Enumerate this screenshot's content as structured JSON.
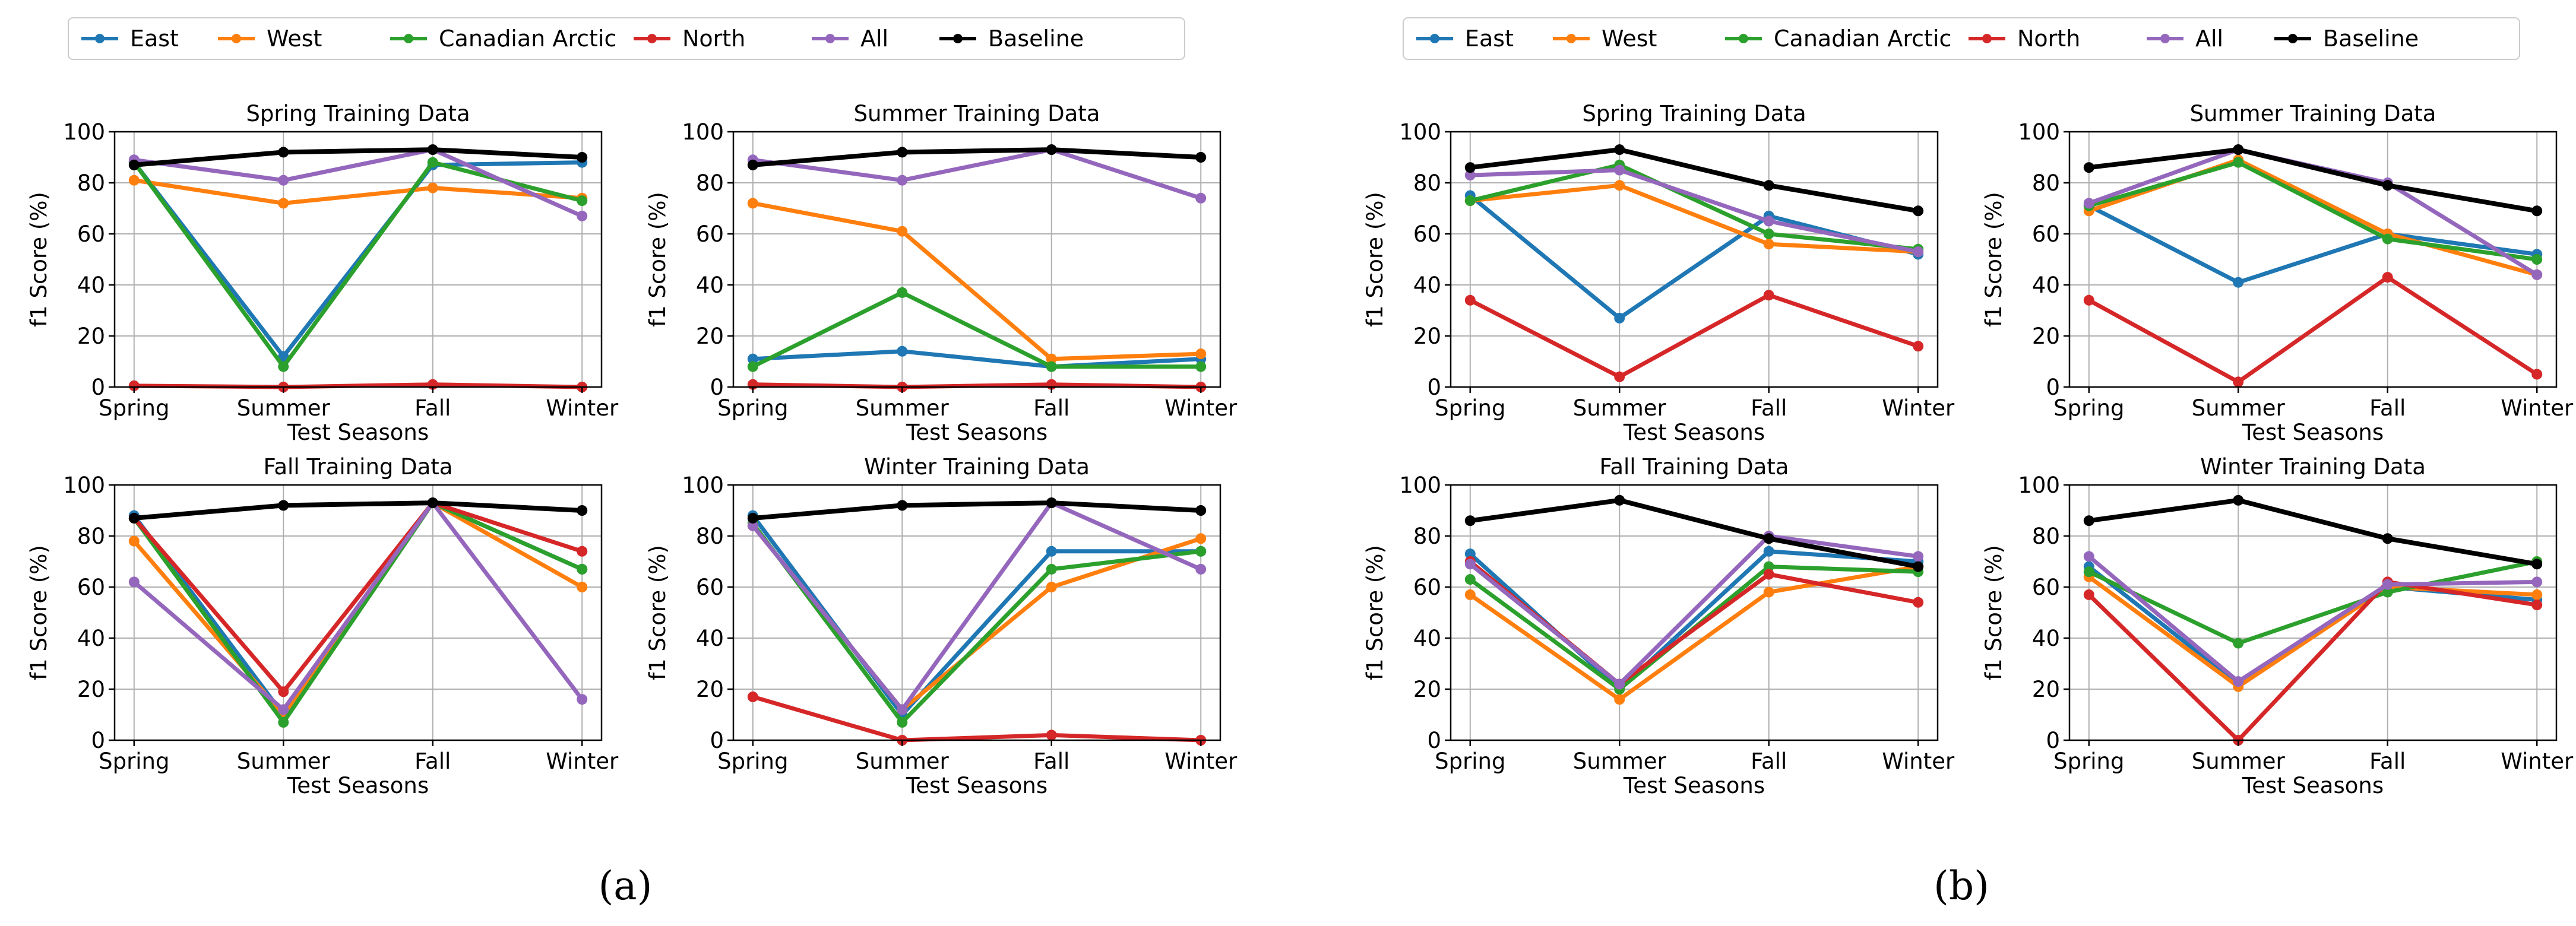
{
  "figure": {
    "panels": [
      {
        "id": "a",
        "caption": "(a)"
      },
      {
        "id": "b",
        "caption": "(b)"
      }
    ],
    "legend": [
      {
        "name": "East",
        "color": "#1f77b4"
      },
      {
        "name": "West",
        "color": "#ff7f0e"
      },
      {
        "name": "Canadian Arctic",
        "color": "#2ca02c"
      },
      {
        "name": "North",
        "color": "#d62728"
      },
      {
        "name": "All",
        "color": "#9467bd"
      },
      {
        "name": "Baseline",
        "color": "#000000"
      }
    ]
  },
  "chart_data": [
    {
      "panel": "a",
      "type": "line",
      "title": "Spring Training Data",
      "xlabel": "Test Seasons",
      "ylabel": "f1 Score (%)",
      "ylim": [
        0,
        100
      ],
      "grid": true,
      "categories": [
        "Spring",
        "Summer",
        "Fall",
        "Winter"
      ],
      "yticks": [
        "0",
        "20",
        "40",
        "60",
        "80",
        "100"
      ],
      "series": [
        {
          "name": "East",
          "values": [
            88,
            12,
            87,
            88
          ]
        },
        {
          "name": "West",
          "values": [
            81,
            72,
            78,
            74
          ]
        },
        {
          "name": "Canadian Arctic",
          "values": [
            88,
            8,
            88,
            73
          ]
        },
        {
          "name": "North",
          "values": [
            0.5,
            0,
            1,
            0
          ]
        },
        {
          "name": "All",
          "values": [
            89,
            81,
            93,
            67
          ]
        },
        {
          "name": "Baseline",
          "values": [
            87,
            92,
            93,
            90
          ]
        }
      ]
    },
    {
      "panel": "a",
      "type": "line",
      "title": "Summer Training Data",
      "xlabel": "Test Seasons",
      "ylabel": "f1 Score (%)",
      "ylim": [
        0,
        100
      ],
      "grid": true,
      "categories": [
        "Spring",
        "Summer",
        "Fall",
        "Winter"
      ],
      "yticks": [
        "0",
        "20",
        "40",
        "60",
        "80",
        "100"
      ],
      "series": [
        {
          "name": "East",
          "values": [
            11,
            14,
            8,
            11
          ]
        },
        {
          "name": "West",
          "values": [
            72,
            61,
            11,
            13
          ]
        },
        {
          "name": "Canadian Arctic",
          "values": [
            8,
            37,
            8,
            8
          ]
        },
        {
          "name": "North",
          "values": [
            1,
            0,
            1,
            0
          ]
        },
        {
          "name": "All",
          "values": [
            89,
            81,
            93,
            74
          ]
        },
        {
          "name": "Baseline",
          "values": [
            87,
            92,
            93,
            90
          ]
        }
      ]
    },
    {
      "panel": "a",
      "type": "line",
      "title": "Fall Training Data",
      "xlabel": "Test Seasons",
      "ylabel": "f1 Score (%)",
      "ylim": [
        0,
        100
      ],
      "grid": true,
      "categories": [
        "Spring",
        "Summer",
        "Fall",
        "Winter"
      ],
      "yticks": [
        "0",
        "20",
        "40",
        "60",
        "80",
        "100"
      ],
      "series": [
        {
          "name": "East",
          "values": [
            88,
            10,
            93,
            67
          ]
        },
        {
          "name": "West",
          "values": [
            78,
            10,
            93,
            60
          ]
        },
        {
          "name": "Canadian Arctic",
          "values": [
            87,
            7,
            93,
            67
          ]
        },
        {
          "name": "North",
          "values": [
            87,
            19,
            93,
            74
          ]
        },
        {
          "name": "All",
          "values": [
            62,
            12,
            93,
            16
          ]
        },
        {
          "name": "Baseline",
          "values": [
            87,
            92,
            93,
            90
          ]
        }
      ]
    },
    {
      "panel": "a",
      "type": "line",
      "title": "Winter Training Data",
      "xlabel": "Test Seasons",
      "ylabel": "f1 Score (%)",
      "ylim": [
        0,
        100
      ],
      "grid": true,
      "categories": [
        "Spring",
        "Summer",
        "Fall",
        "Winter"
      ],
      "yticks": [
        "0",
        "20",
        "40",
        "60",
        "80",
        "100"
      ],
      "series": [
        {
          "name": "East",
          "values": [
            88,
            10,
            74,
            74
          ]
        },
        {
          "name": "West",
          "values": [
            84,
            12,
            60,
            79
          ]
        },
        {
          "name": "Canadian Arctic",
          "values": [
            85,
            7,
            67,
            74
          ]
        },
        {
          "name": "North",
          "values": [
            17,
            0,
            2,
            0
          ]
        },
        {
          "name": "All",
          "values": [
            84,
            12,
            93,
            67
          ]
        },
        {
          "name": "Baseline",
          "values": [
            87,
            92,
            93,
            90
          ]
        }
      ]
    },
    {
      "panel": "b",
      "type": "line",
      "title": "Spring Training Data",
      "xlabel": "Test Seasons",
      "ylabel": "f1 Score (%)",
      "ylim": [
        0,
        100
      ],
      "grid": true,
      "categories": [
        "Spring",
        "Summer",
        "Fall",
        "Winter"
      ],
      "yticks": [
        "0",
        "20",
        "40",
        "60",
        "80",
        "100"
      ],
      "series": [
        {
          "name": "East",
          "values": [
            75,
            27,
            67,
            52
          ]
        },
        {
          "name": "West",
          "values": [
            73,
            79,
            56,
            53
          ]
        },
        {
          "name": "Canadian Arctic",
          "values": [
            73,
            87,
            60,
            54
          ]
        },
        {
          "name": "North",
          "values": [
            34,
            4,
            36,
            16
          ]
        },
        {
          "name": "All",
          "values": [
            83,
            85,
            65,
            53
          ]
        },
        {
          "name": "Baseline",
          "values": [
            86,
            93,
            79,
            69
          ]
        }
      ]
    },
    {
      "panel": "b",
      "type": "line",
      "title": "Summer Training Data",
      "xlabel": "Test Seasons",
      "ylabel": "f1 Score (%)",
      "ylim": [
        0,
        100
      ],
      "grid": true,
      "categories": [
        "Spring",
        "Summer",
        "Fall",
        "Winter"
      ],
      "yticks": [
        "0",
        "20",
        "40",
        "60",
        "80",
        "100"
      ],
      "series": [
        {
          "name": "East",
          "values": [
            71,
            41,
            60,
            52
          ]
        },
        {
          "name": "West",
          "values": [
            69,
            89,
            60,
            44
          ]
        },
        {
          "name": "Canadian Arctic",
          "values": [
            71,
            88,
            58,
            50
          ]
        },
        {
          "name": "North",
          "values": [
            34,
            2,
            43,
            5
          ]
        },
        {
          "name": "All",
          "values": [
            72,
            93,
            80,
            44
          ]
        },
        {
          "name": "Baseline",
          "values": [
            86,
            93,
            79,
            69
          ]
        }
      ]
    },
    {
      "panel": "b",
      "type": "line",
      "title": "Fall Training Data",
      "xlabel": "Test Seasons",
      "ylabel": "f1 Score (%)",
      "ylim": [
        0,
        100
      ],
      "grid": true,
      "categories": [
        "Spring",
        "Summer",
        "Fall",
        "Winter"
      ],
      "yticks": [
        "0",
        "20",
        "40",
        "60",
        "80",
        "100"
      ],
      "series": [
        {
          "name": "East",
          "values": [
            73,
            20,
            74,
            70
          ]
        },
        {
          "name": "West",
          "values": [
            57,
            16,
            58,
            68
          ]
        },
        {
          "name": "Canadian Arctic",
          "values": [
            63,
            20,
            68,
            66
          ]
        },
        {
          "name": "North",
          "values": [
            70,
            22,
            65,
            54
          ]
        },
        {
          "name": "All",
          "values": [
            69,
            22,
            80,
            72
          ]
        },
        {
          "name": "Baseline",
          "values": [
            86,
            94,
            79,
            68
          ]
        }
      ]
    },
    {
      "panel": "b",
      "type": "line",
      "title": "Winter Training Data",
      "xlabel": "Test Seasons",
      "ylabel": "f1 Score (%)",
      "ylim": [
        0,
        100
      ],
      "grid": true,
      "categories": [
        "Spring",
        "Summer",
        "Fall",
        "Winter"
      ],
      "yticks": [
        "0",
        "20",
        "40",
        "60",
        "80",
        "100"
      ],
      "series": [
        {
          "name": "East",
          "values": [
            68,
            22,
            60,
            55
          ]
        },
        {
          "name": "West",
          "values": [
            64,
            21,
            60,
            57
          ]
        },
        {
          "name": "Canadian Arctic",
          "values": [
            66,
            38,
            58,
            70
          ]
        },
        {
          "name": "North",
          "values": [
            57,
            0,
            62,
            53
          ]
        },
        {
          "name": "All",
          "values": [
            72,
            23,
            61,
            62
          ]
        },
        {
          "name": "Baseline",
          "values": [
            86,
            94,
            79,
            69
          ]
        }
      ]
    }
  ]
}
